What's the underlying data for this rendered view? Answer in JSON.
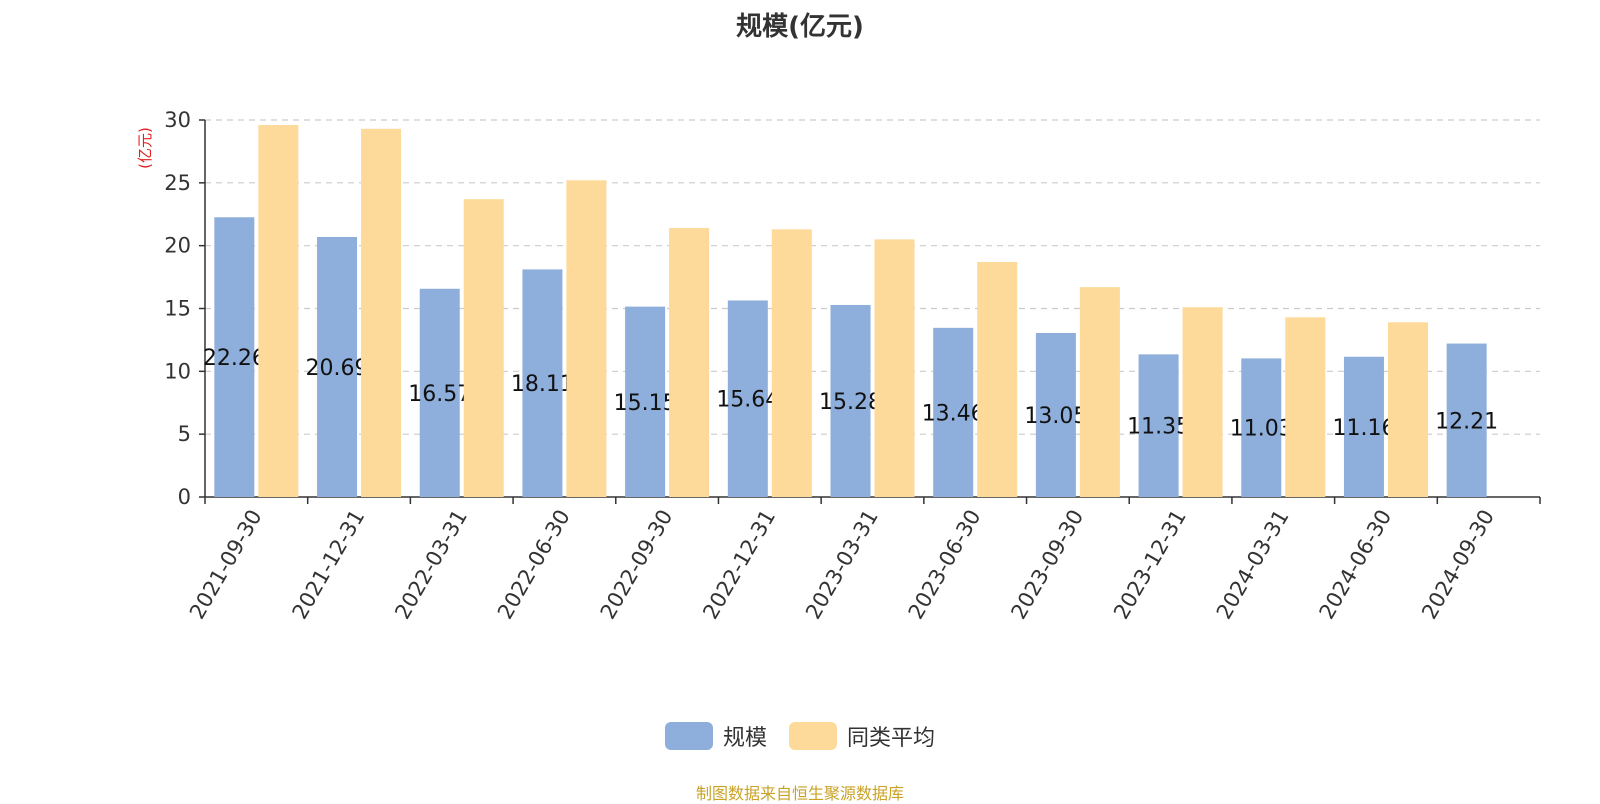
{
  "chart_data": {
    "type": "bar",
    "title": "规模(亿元)",
    "ylabel": "(亿元)",
    "xlabel": "",
    "ylim": [
      0,
      30
    ],
    "yticks": [
      0,
      5,
      10,
      15,
      20,
      25,
      30
    ],
    "grid": true,
    "legend_position": "bottom",
    "categories": [
      "2021-09-30",
      "2021-12-31",
      "2022-03-31",
      "2022-06-30",
      "2022-09-30",
      "2022-12-31",
      "2023-03-31",
      "2023-06-30",
      "2023-09-30",
      "2023-12-31",
      "2024-03-31",
      "2024-06-30",
      "2024-09-30"
    ],
    "series": [
      {
        "name": "规模",
        "color": "#8eaedb",
        "values": [
          22.26,
          20.69,
          16.57,
          18.11,
          15.15,
          15.64,
          15.28,
          13.46,
          13.05,
          11.35,
          11.03,
          11.16,
          12.21
        ],
        "labels": [
          "22.26",
          "20.69",
          "16.57",
          "18.11",
          "15.15",
          "15.64",
          "15.28",
          "13.46",
          "13.05",
          "11.35",
          "11.03",
          "11.16",
          "12.21"
        ]
      },
      {
        "name": "同类平均",
        "color": "#fdd99a",
        "values": [
          29.6,
          29.3,
          23.7,
          25.2,
          21.4,
          21.3,
          20.5,
          18.7,
          16.7,
          15.1,
          14.3,
          13.9,
          null
        ]
      }
    ]
  },
  "footer": {
    "source": "制图数据来自恒生聚源数据库"
  }
}
